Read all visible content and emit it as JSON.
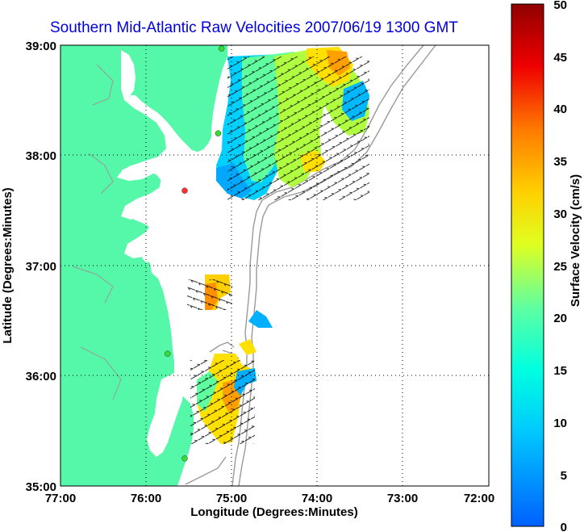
{
  "title": "Southern Mid-Atlantic Raw Velocities 2007/06/19 1300 GMT",
  "xlabel": "Longitude (Degrees:Minutes)",
  "ylabel": "Latitude (Degrees:Minutes)",
  "colorbar_label": "Surface Velocity (cm/s)",
  "colors": {
    "land": "#55f7a8",
    "water": "#ffffff",
    "title": "#0000e0",
    "bathymetry": "#9a9a9a"
  },
  "chart_data": {
    "type": "heatmap",
    "x_ticks": [
      "77:00",
      "76:00",
      "75:00",
      "74:00",
      "73:00",
      "72:00"
    ],
    "y_ticks": [
      "39:00",
      "38:00",
      "37:00",
      "36:00",
      "35:00"
    ],
    "xlim": [
      -77,
      -72
    ],
    "ylim": [
      35,
      39
    ],
    "grid": "dotted",
    "colorbar": {
      "ticks": [
        "50",
        "45",
        "40",
        "35",
        "30",
        "25",
        "20",
        "15",
        "10",
        "5",
        "0"
      ],
      "range": [
        0,
        50
      ],
      "colormap": "jet",
      "position": "right"
    },
    "markers": [
      {
        "lon": -75.12,
        "lat": 38.97,
        "color": "#33dd33"
      },
      {
        "lon": -75.16,
        "lat": 38.2,
        "color": "#33dd33"
      },
      {
        "lon": -75.55,
        "lat": 37.68,
        "color": "#ff3333"
      },
      {
        "lon": -75.75,
        "lat": 36.2,
        "color": "#33dd33"
      },
      {
        "lon": -75.55,
        "lat": 35.25,
        "color": "#33dd33"
      }
    ]
  }
}
